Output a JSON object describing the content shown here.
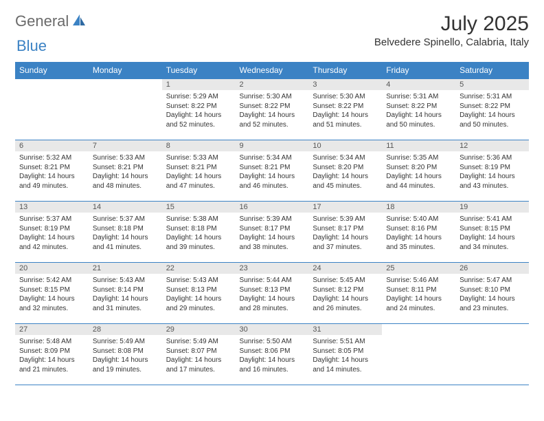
{
  "brand": {
    "word1": "General",
    "word2": "Blue"
  },
  "title": "July 2025",
  "location": "Belvedere Spinello, Calabria, Italy",
  "style": {
    "header_bg": "#3b82c4",
    "header_fg": "#ffffff",
    "daynum_bg": "#e8e8e8",
    "daynum_fg": "#555555",
    "row_border": "#3b82c4",
    "body_bg": "#ffffff",
    "body_text": "#333333",
    "logo_gray": "#6a6a6a",
    "logo_blue": "#3b82c4",
    "title_fontsize": 30,
    "location_fontsize": 15,
    "dayheader_fontsize": 12,
    "daynum_fontsize": 11,
    "body_fontsize": 10
  },
  "day_headers": [
    "Sunday",
    "Monday",
    "Tuesday",
    "Wednesday",
    "Thursday",
    "Friday",
    "Saturday"
  ],
  "weeks": [
    [
      null,
      null,
      {
        "n": "1",
        "sr": "5:29 AM",
        "ss": "8:22 PM",
        "dl": "14 hours and 52 minutes."
      },
      {
        "n": "2",
        "sr": "5:30 AM",
        "ss": "8:22 PM",
        "dl": "14 hours and 52 minutes."
      },
      {
        "n": "3",
        "sr": "5:30 AM",
        "ss": "8:22 PM",
        "dl": "14 hours and 51 minutes."
      },
      {
        "n": "4",
        "sr": "5:31 AM",
        "ss": "8:22 PM",
        "dl": "14 hours and 50 minutes."
      },
      {
        "n": "5",
        "sr": "5:31 AM",
        "ss": "8:22 PM",
        "dl": "14 hours and 50 minutes."
      }
    ],
    [
      {
        "n": "6",
        "sr": "5:32 AM",
        "ss": "8:21 PM",
        "dl": "14 hours and 49 minutes."
      },
      {
        "n": "7",
        "sr": "5:33 AM",
        "ss": "8:21 PM",
        "dl": "14 hours and 48 minutes."
      },
      {
        "n": "8",
        "sr": "5:33 AM",
        "ss": "8:21 PM",
        "dl": "14 hours and 47 minutes."
      },
      {
        "n": "9",
        "sr": "5:34 AM",
        "ss": "8:21 PM",
        "dl": "14 hours and 46 minutes."
      },
      {
        "n": "10",
        "sr": "5:34 AM",
        "ss": "8:20 PM",
        "dl": "14 hours and 45 minutes."
      },
      {
        "n": "11",
        "sr": "5:35 AM",
        "ss": "8:20 PM",
        "dl": "14 hours and 44 minutes."
      },
      {
        "n": "12",
        "sr": "5:36 AM",
        "ss": "8:19 PM",
        "dl": "14 hours and 43 minutes."
      }
    ],
    [
      {
        "n": "13",
        "sr": "5:37 AM",
        "ss": "8:19 PM",
        "dl": "14 hours and 42 minutes."
      },
      {
        "n": "14",
        "sr": "5:37 AM",
        "ss": "8:18 PM",
        "dl": "14 hours and 41 minutes."
      },
      {
        "n": "15",
        "sr": "5:38 AM",
        "ss": "8:18 PM",
        "dl": "14 hours and 39 minutes."
      },
      {
        "n": "16",
        "sr": "5:39 AM",
        "ss": "8:17 PM",
        "dl": "14 hours and 38 minutes."
      },
      {
        "n": "17",
        "sr": "5:39 AM",
        "ss": "8:17 PM",
        "dl": "14 hours and 37 minutes."
      },
      {
        "n": "18",
        "sr": "5:40 AM",
        "ss": "8:16 PM",
        "dl": "14 hours and 35 minutes."
      },
      {
        "n": "19",
        "sr": "5:41 AM",
        "ss": "8:15 PM",
        "dl": "14 hours and 34 minutes."
      }
    ],
    [
      {
        "n": "20",
        "sr": "5:42 AM",
        "ss": "8:15 PM",
        "dl": "14 hours and 32 minutes."
      },
      {
        "n": "21",
        "sr": "5:43 AM",
        "ss": "8:14 PM",
        "dl": "14 hours and 31 minutes."
      },
      {
        "n": "22",
        "sr": "5:43 AM",
        "ss": "8:13 PM",
        "dl": "14 hours and 29 minutes."
      },
      {
        "n": "23",
        "sr": "5:44 AM",
        "ss": "8:13 PM",
        "dl": "14 hours and 28 minutes."
      },
      {
        "n": "24",
        "sr": "5:45 AM",
        "ss": "8:12 PM",
        "dl": "14 hours and 26 minutes."
      },
      {
        "n": "25",
        "sr": "5:46 AM",
        "ss": "8:11 PM",
        "dl": "14 hours and 24 minutes."
      },
      {
        "n": "26",
        "sr": "5:47 AM",
        "ss": "8:10 PM",
        "dl": "14 hours and 23 minutes."
      }
    ],
    [
      {
        "n": "27",
        "sr": "5:48 AM",
        "ss": "8:09 PM",
        "dl": "14 hours and 21 minutes."
      },
      {
        "n": "28",
        "sr": "5:49 AM",
        "ss": "8:08 PM",
        "dl": "14 hours and 19 minutes."
      },
      {
        "n": "29",
        "sr": "5:49 AM",
        "ss": "8:07 PM",
        "dl": "14 hours and 17 minutes."
      },
      {
        "n": "30",
        "sr": "5:50 AM",
        "ss": "8:06 PM",
        "dl": "14 hours and 16 minutes."
      },
      {
        "n": "31",
        "sr": "5:51 AM",
        "ss": "8:05 PM",
        "dl": "14 hours and 14 minutes."
      },
      null,
      null
    ]
  ],
  "labels": {
    "sunrise": "Sunrise:",
    "sunset": "Sunset:",
    "daylight": "Daylight:"
  }
}
